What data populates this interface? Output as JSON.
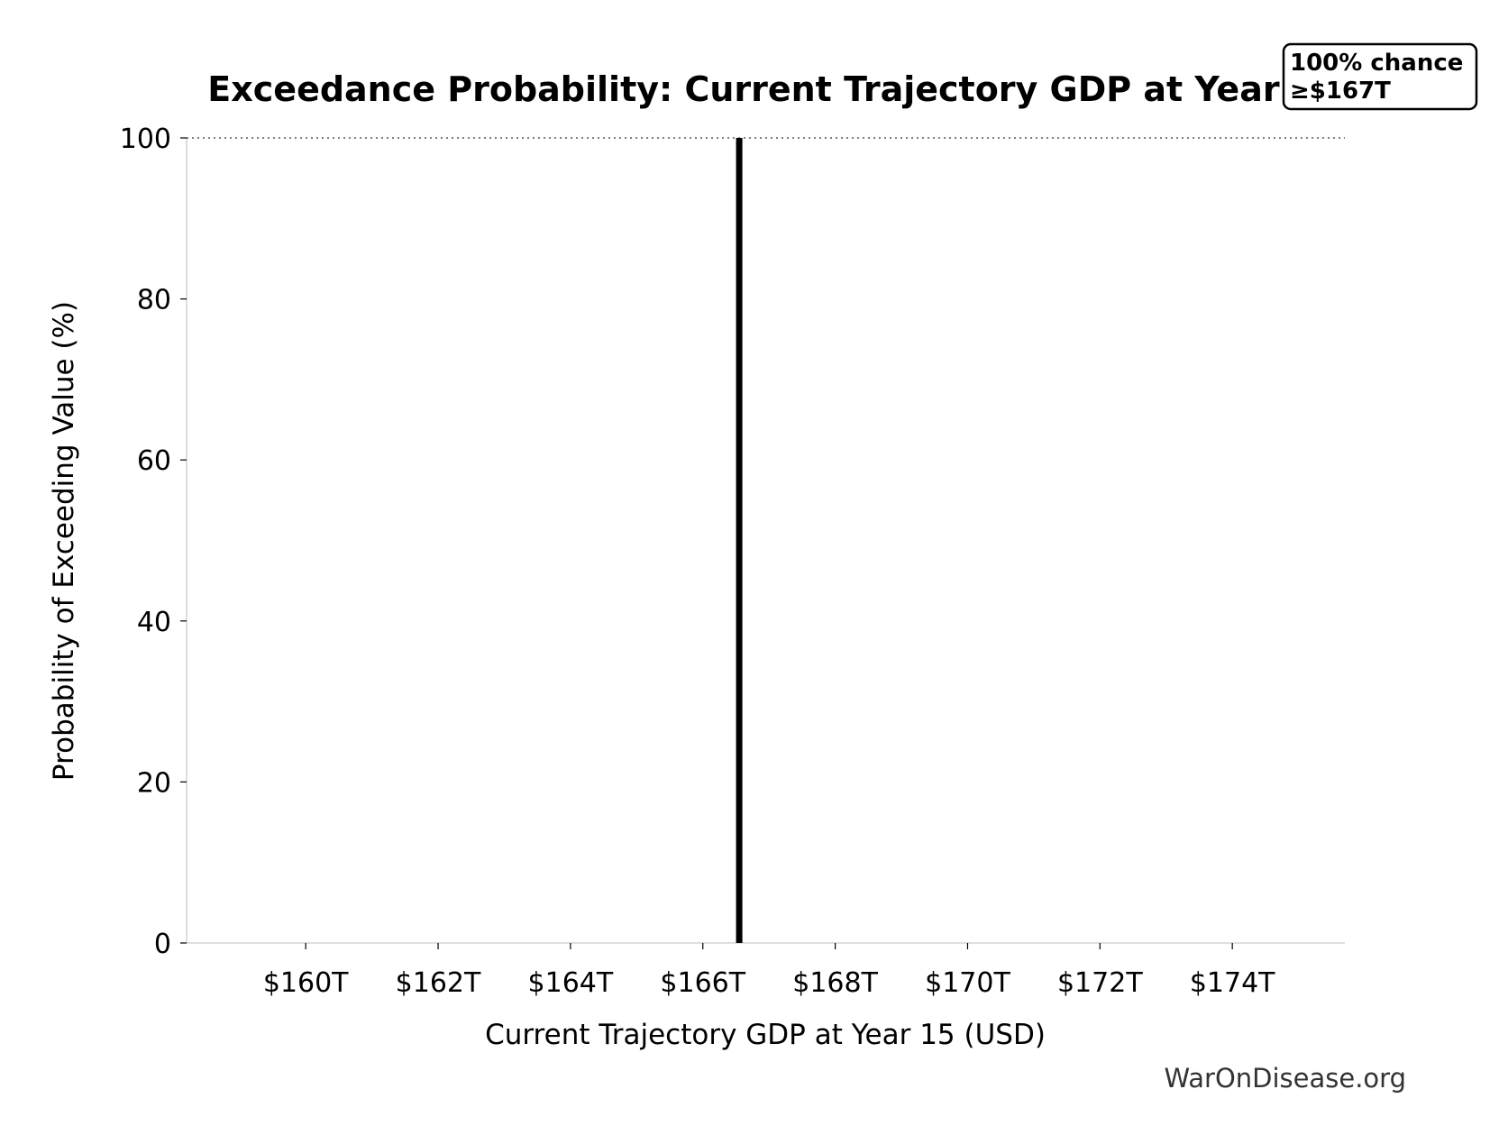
{
  "chart_data": {
    "type": "line",
    "title": "Exceedance Probability: Current Trajectory GDP at Year 15",
    "xlabel": "Current Trajectory GDP at Year 15 (USD)",
    "ylabel": "Probability of Exceeding Value (%)",
    "xlim": [
      158.2,
      175.7
    ],
    "ylim": [
      0,
      100
    ],
    "x_ticks": [
      {
        "value": 160,
        "label": "$160T"
      },
      {
        "value": 162,
        "label": "$162T"
      },
      {
        "value": 164,
        "label": "$164T"
      },
      {
        "value": 166,
        "label": "$166T"
      },
      {
        "value": 168,
        "label": "$168T"
      },
      {
        "value": 170,
        "label": "$170T"
      },
      {
        "value": 172,
        "label": "$172T"
      },
      {
        "value": 174,
        "label": "$174T"
      }
    ],
    "y_ticks": [
      {
        "value": 0,
        "label": "0"
      },
      {
        "value": 20,
        "label": "20"
      },
      {
        "value": 40,
        "label": "40"
      },
      {
        "value": 60,
        "label": "60"
      },
      {
        "value": 80,
        "label": "80"
      },
      {
        "value": 100,
        "label": "100"
      }
    ],
    "series": [
      {
        "x": [
          166.55,
          166.55
        ],
        "y": [
          0,
          100
        ],
        "color": "#000000"
      }
    ],
    "reference_line": {
      "y": 100,
      "style": "dotted",
      "color": "#555555"
    },
    "annotation": {
      "lines": [
        "100% chance",
        "≥$167T"
      ],
      "placement": "top-right"
    },
    "grid": false,
    "source": "WarOnDisease.org"
  }
}
